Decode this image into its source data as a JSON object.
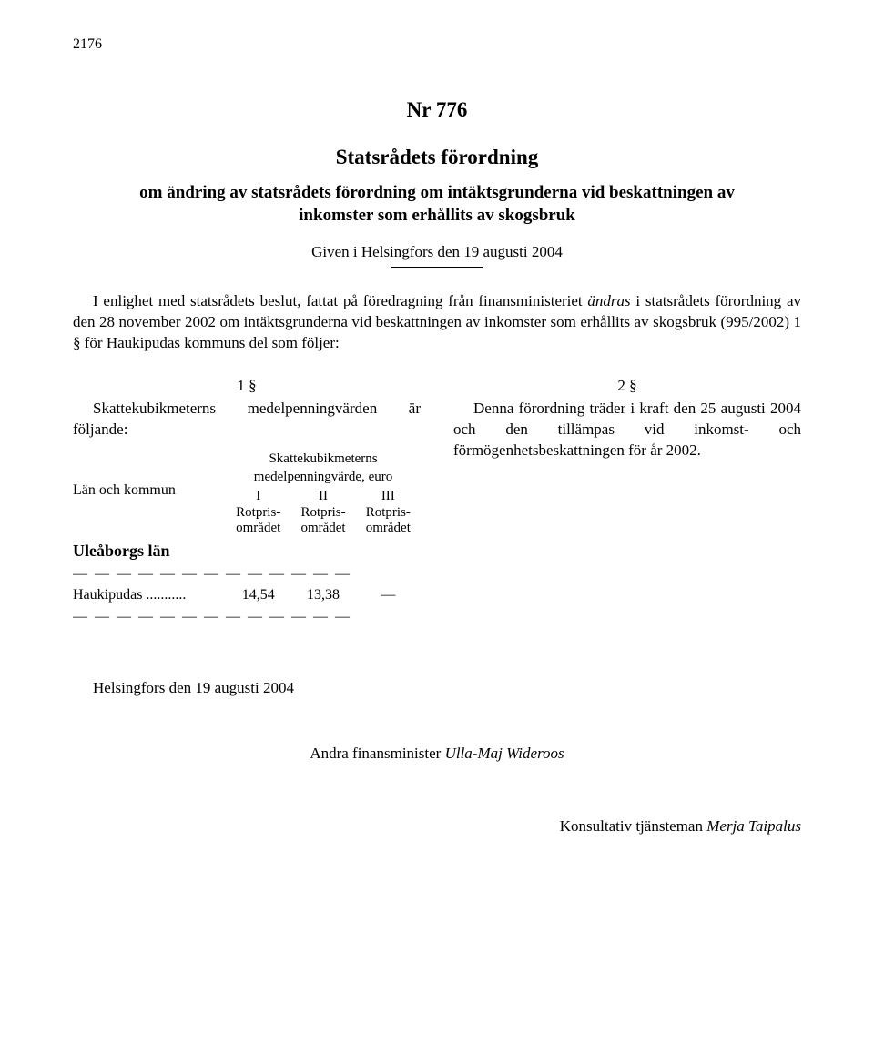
{
  "page_number": "2176",
  "header": {
    "doc_number": "Nr 776",
    "title": "Statsrådets förordning",
    "subject": "om ändring av statsrådets förordning om intäktsgrunderna vid beskattningen av inkomster som erhållits av skogsbruk",
    "given_at": "Given i Helsingfors den 19 augusti 2004"
  },
  "preamble_parts": {
    "lead": "I enlighet med statsrådets beslut, fattat på föredragning från finansministeriet",
    "verb": "ändras",
    "rest": " i statsrådets förordning av den 28 november 2002 om intäktsgrunderna vid beskattningen av inkomster som erhållits av skogsbruk (995/2002) 1 § för Haukipudas kommuns del som följer:"
  },
  "section1": {
    "num": "1 §",
    "text": "Skattekubikmeterns medelpenningvärden är följande:"
  },
  "table": {
    "header_top": "Skattekubikmeterns",
    "header_mid": "medelpenningvärde, euro",
    "left_label": "Län och kommun",
    "roman": [
      "I",
      "II",
      "III"
    ],
    "rot1": [
      "Rotpris-",
      "Rotpris-",
      "Rotpris-"
    ],
    "rot2": [
      "området",
      "området",
      "området"
    ],
    "county": "Uleåborgs län",
    "row": {
      "label": "Haukipudas ...........",
      "vals": [
        "14,54",
        "13,38",
        "—"
      ]
    },
    "dash": "— — — — — — — — — — — — —"
  },
  "section2": {
    "num": "2 §",
    "text": "Denna förordning träder i kraft den 25 augusti 2004 och den tillämpas vid inkomst- och förmögenhetsbeskattningen för år 2002."
  },
  "signed_at": "Helsingfors den 19 augusti 2004",
  "minister_title": "Andra finansminister ",
  "minister_name": "Ulla-Maj Wideroos",
  "consultant_title": "Konsultativ tjänsteman ",
  "consultant_name": "Merja Taipalus"
}
